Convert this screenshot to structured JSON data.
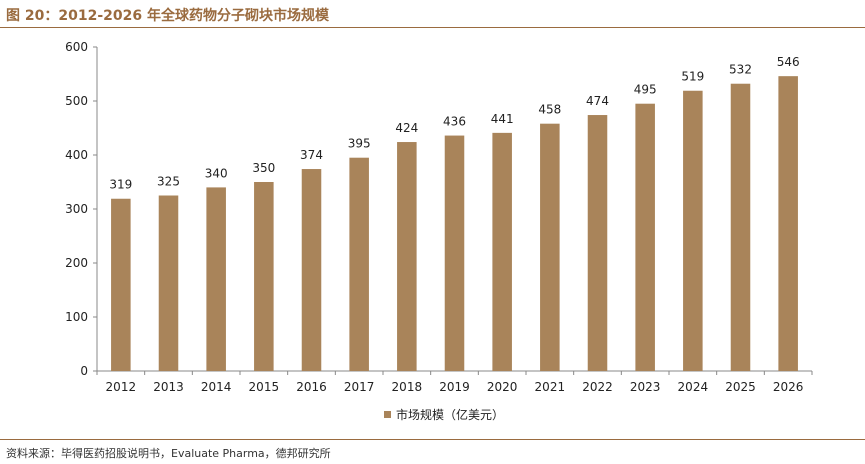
{
  "figure": {
    "title": "图 20：2012-2026 年全球药物分子砌块市场规模",
    "source": "资料来源：毕得医药招股说明书，Evaluate Pharma，德邦研究所"
  },
  "colors": {
    "bar": "#a9845a",
    "title": "#9a6b3f",
    "axis": "#888888"
  },
  "chart_data": {
    "type": "bar",
    "categories": [
      "2012",
      "2013",
      "2014",
      "2015",
      "2016",
      "2017",
      "2018",
      "2019",
      "2020",
      "2021",
      "2022",
      "2023",
      "2024",
      "2025",
      "2026"
    ],
    "series": [
      {
        "name": "市场规模（亿美元）",
        "values": [
          319,
          325,
          340,
          350,
          374,
          395,
          424,
          436,
          441,
          458,
          474,
          495,
          519,
          532,
          546
        ]
      }
    ],
    "ylim": [
      0,
      600
    ],
    "yticks": [
      0,
      100,
      200,
      300,
      400,
      500,
      600
    ],
    "grid": false,
    "legend": "bottom-center",
    "data_labels": true
  }
}
